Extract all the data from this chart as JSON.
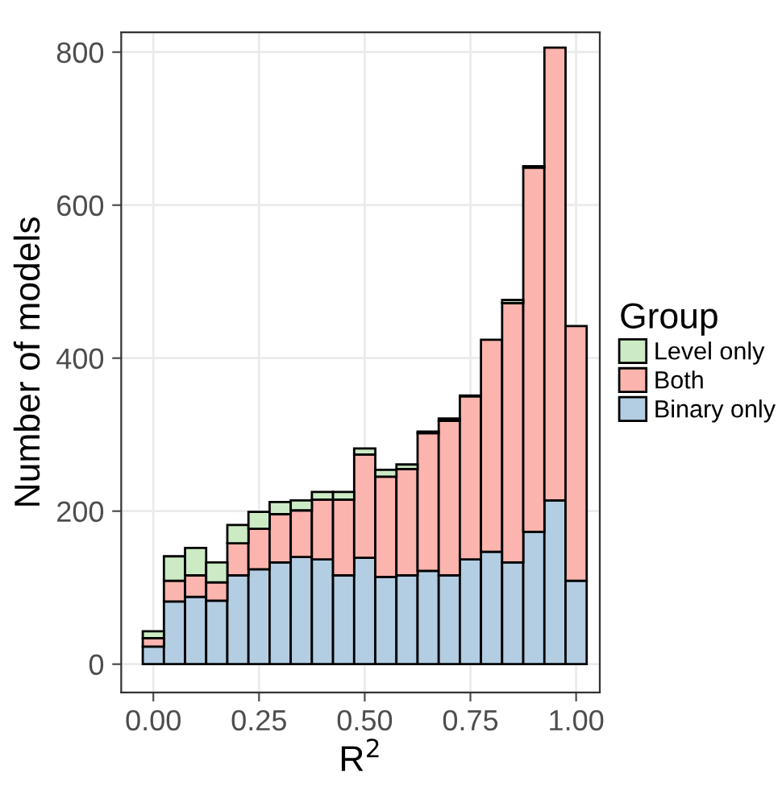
{
  "chart_data": {
    "type": "bar",
    "stacked": true,
    "xlabel": "R$^{2}$",
    "ylabel": "Number of models",
    "legend_title": "Group",
    "legend": "right",
    "x": [
      0,
      0.05,
      0.1,
      0.15,
      0.2,
      0.25,
      0.3,
      0.35,
      0.4,
      0.45,
      0.5,
      0.55,
      0.6,
      0.65,
      0.7,
      0.75,
      0.8,
      0.85,
      0.9,
      0.95,
      1
    ],
    "series": [
      {
        "name": "Binary only",
        "color": "#b3cde3",
        "values": [
          23,
          82,
          88,
          83,
          116,
          124,
          133,
          140,
          137,
          116,
          139,
          114,
          116,
          122,
          116,
          137,
          147,
          133,
          173,
          214,
          109
        ]
      },
      {
        "name": "Both",
        "color": "#fbb4ae",
        "values": [
          11,
          27,
          28,
          24,
          42,
          53,
          63,
          61,
          78,
          99,
          135,
          131,
          139,
          180,
          202,
          213,
          277,
          339,
          476,
          592,
          333
        ]
      },
      {
        "name": "Level only",
        "color": "#ccebc5",
        "values": [
          9,
          32,
          36,
          26,
          24,
          22,
          16,
          13,
          10,
          10,
          8,
          9,
          6,
          2,
          3,
          1,
          0,
          4,
          2,
          0,
          0
        ]
      }
    ],
    "xlim": [
      -0.076,
      1.056
    ],
    "xticks": [
      {
        "value": 0,
        "label": "0.00"
      },
      {
        "value": 0.25,
        "label": "0.25"
      },
      {
        "value": 0.5,
        "label": "0.50"
      },
      {
        "value": 0.75,
        "label": "0.75"
      },
      {
        "value": 1,
        "label": "1.00"
      }
    ],
    "ylim": [
      -37,
      826
    ],
    "yticks": [
      0,
      200,
      400,
      600,
      800
    ],
    "grid": true
  }
}
